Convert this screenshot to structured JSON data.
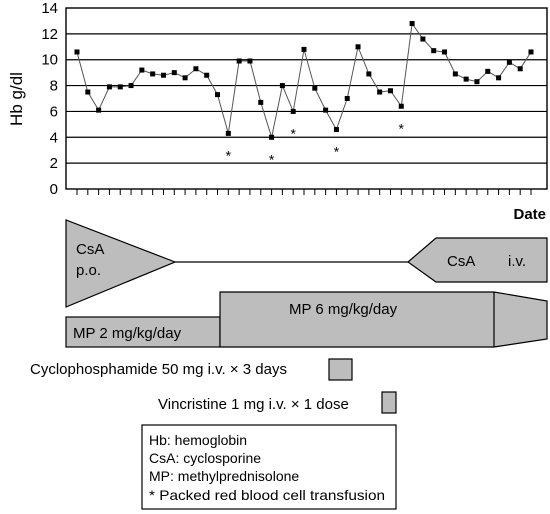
{
  "chart_data": {
    "type": "line",
    "ylabel": "Hb g/dl",
    "xlabel": "Date",
    "ylim": [
      0,
      14
    ],
    "y_ticks": [
      "0",
      "2",
      "4",
      "6",
      "8",
      "10",
      "12",
      "14"
    ],
    "grid": "horizontal",
    "series": [
      {
        "values": [
          10.6,
          7.5,
          6.1,
          7.9,
          7.9,
          8.0,
          9.2,
          8.9,
          8.8,
          9.0,
          8.6,
          9.3,
          8.8,
          7.3,
          4.3,
          9.9,
          9.9,
          6.7,
          4.0,
          8.0,
          6.0,
          10.8,
          7.8,
          6.1,
          4.6,
          7.0,
          11.0,
          8.9,
          7.5,
          7.6,
          6.4,
          12.8,
          11.6,
          10.7,
          10.6,
          8.9,
          8.5,
          8.3,
          9.1,
          8.6,
          9.8,
          9.3,
          10.6
        ],
        "transfusion_points": [
          14,
          18,
          20,
          24,
          30
        ]
      }
    ],
    "transfusion_marker": "*"
  },
  "treatment": {
    "csa_po": [
      "CsA",
      "p.o."
    ],
    "csa_iv_left": "CsA",
    "csa_iv_right": "i.v.",
    "mp_low": "MP 2 mg/kg/day",
    "mp_high": "MP 6 mg/kg/day",
    "cyclophosphamide": "Cyclophosphamide 50 mg i.v. × 3 days",
    "vincristine": "Vincristine 1 mg i.v. × 1 dose"
  },
  "legend": {
    "hb": "Hb: hemoglobin",
    "csa": "CsA: cyclosporine",
    "mp": "MP: methylprednisolone",
    "transfusion": "* Packed red blood cell transfusion"
  },
  "colors": {
    "shape_fill": "#bdbdbd",
    "line": "#555555",
    "marker": "#000000"
  }
}
